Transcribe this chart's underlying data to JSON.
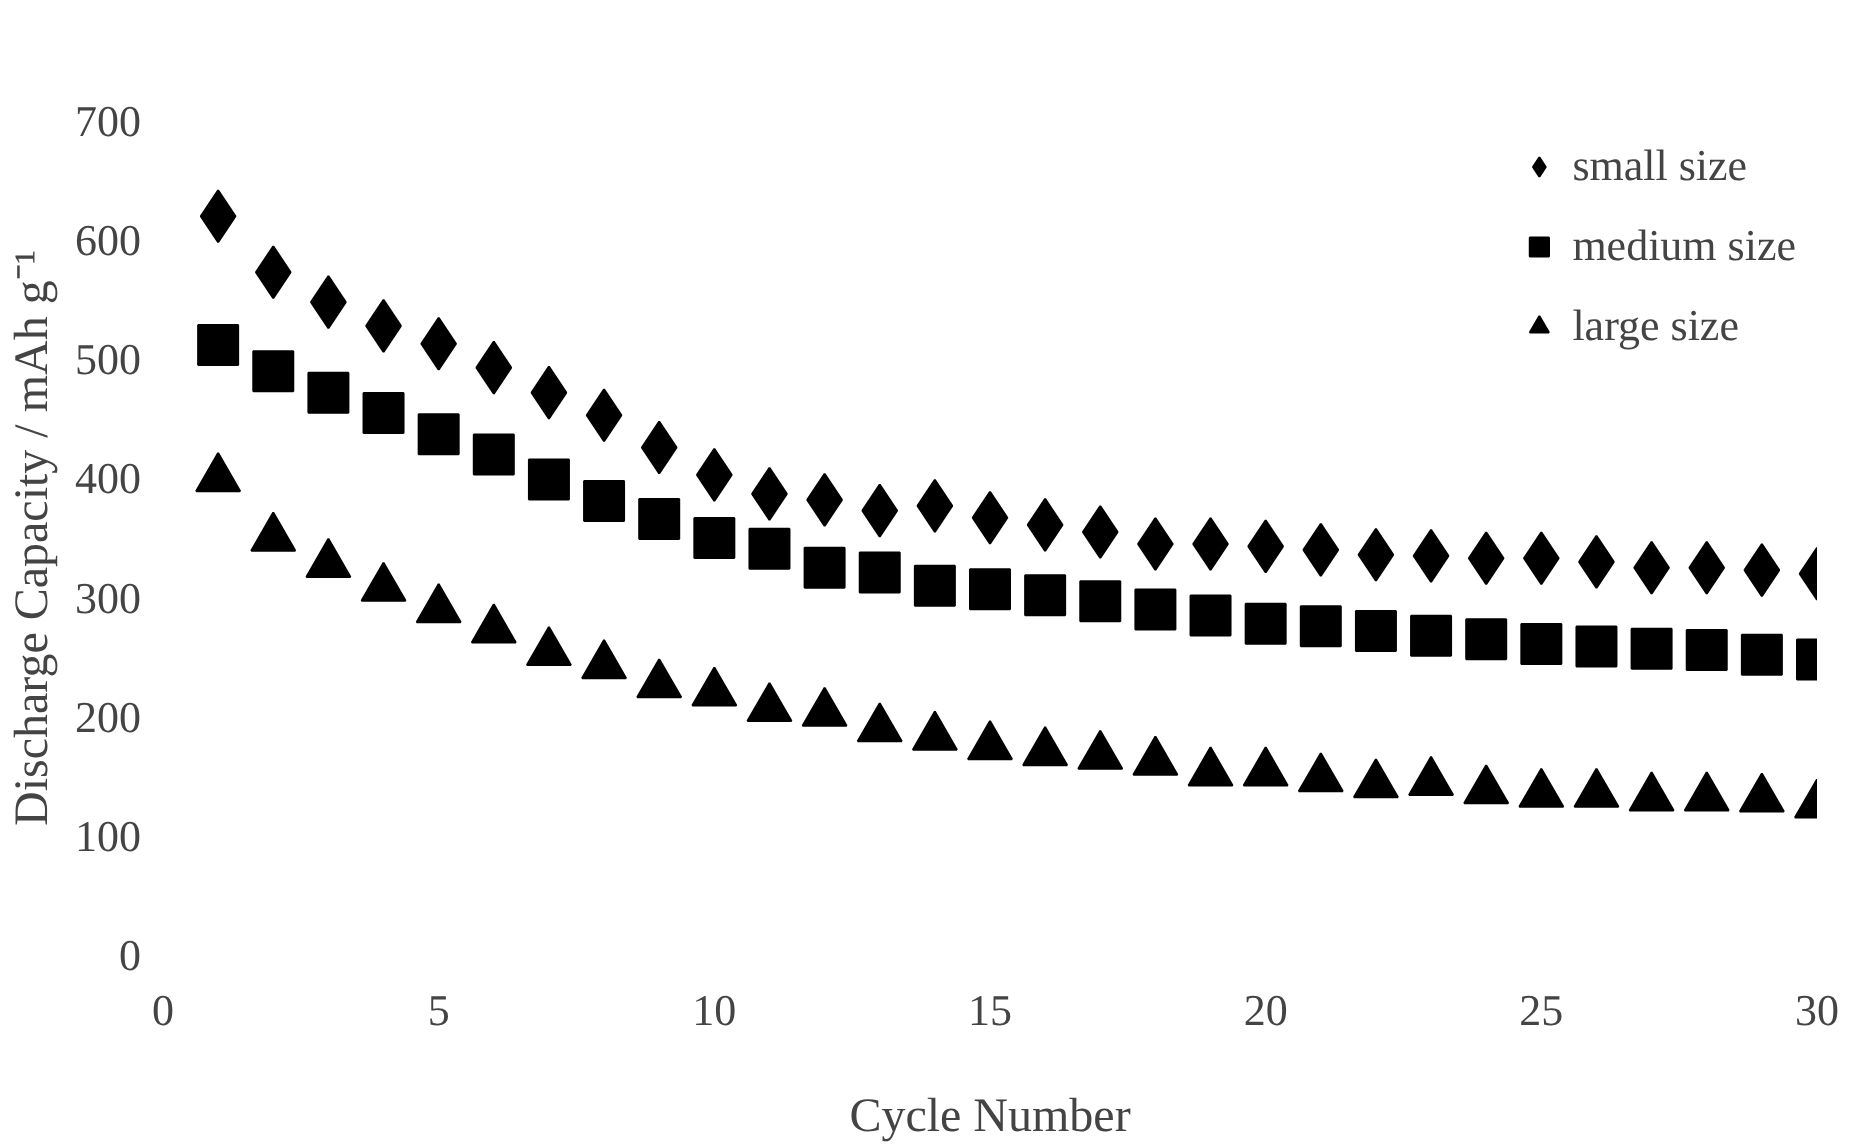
{
  "chart_data": {
    "type": "scatter",
    "xlabel": "Cycle Number",
    "ylabel": "Discharge Capacity / mAh g⁻¹",
    "x": [
      1,
      2,
      3,
      4,
      5,
      6,
      7,
      8,
      9,
      10,
      11,
      12,
      13,
      14,
      15,
      16,
      17,
      18,
      19,
      20,
      21,
      22,
      23,
      24,
      25,
      26,
      27,
      28,
      29,
      30
    ],
    "series": [
      {
        "name": "small size",
        "color": "#000000",
        "marker": "diamond",
        "values": [
          620,
          573,
          548,
          528,
          513,
          493,
          472,
          453,
          426,
          403,
          387,
          382,
          373,
          377,
          367,
          361,
          355,
          345,
          345,
          343,
          340,
          336,
          335,
          333,
          333,
          330,
          325,
          325,
          323,
          320
        ]
      },
      {
        "name": "medium size",
        "color": "#000000",
        "marker": "square",
        "values": [
          512,
          490,
          472,
          455,
          437,
          420,
          399,
          381,
          366,
          350,
          341,
          325,
          321,
          310,
          307,
          302,
          297,
          290,
          285,
          278,
          276,
          272,
          268,
          265,
          261,
          259,
          257,
          256,
          252,
          248
        ]
      },
      {
        "name": "large size",
        "color": "#000000",
        "marker": "triangle",
        "values": [
          400,
          350,
          328,
          308,
          290,
          273,
          254,
          243,
          227,
          220,
          207,
          203,
          190,
          183,
          175,
          170,
          167,
          162,
          153,
          153,
          148,
          143,
          145,
          138,
          135,
          135,
          132,
          132,
          131,
          126
        ]
      }
    ],
    "xlim": [
      0,
      30
    ],
    "xticks": [
      0,
      5,
      10,
      15,
      20,
      25,
      30
    ],
    "ylim": [
      0,
      700
    ],
    "yticks": [
      0,
      100,
      200,
      300,
      400,
      500,
      600,
      700
    ],
    "grid": false,
    "legend": "top right"
  }
}
